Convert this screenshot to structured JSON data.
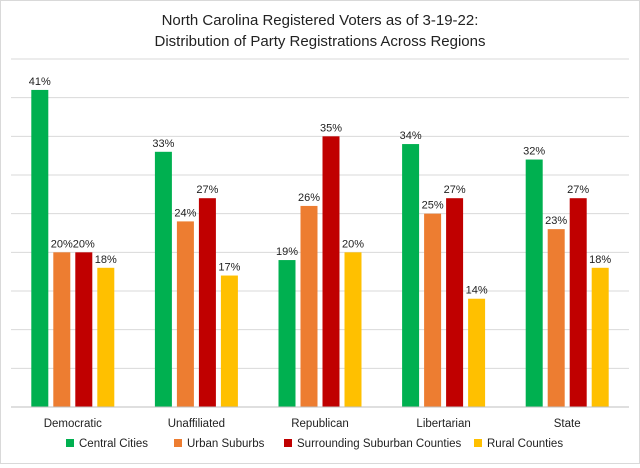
{
  "chart_data": {
    "type": "bar",
    "title_lines": [
      "North Carolina Registered Voters as of 3-19-22:",
      "Distribution of Party Registrations Across Regions"
    ],
    "categories": [
      "Democratic",
      "Unaffiliated",
      "Republican",
      "Libertarian",
      "State"
    ],
    "series": [
      {
        "name": "Central Cities",
        "color": "#00b050",
        "values": [
          41,
          33,
          19,
          34,
          32
        ]
      },
      {
        "name": "Urban Suburbs",
        "color": "#ed7d31",
        "values": [
          20,
          24,
          26,
          25,
          23
        ]
      },
      {
        "name": "Surrounding Suburban Counties",
        "color": "#c00000",
        "values": [
          20,
          27,
          35,
          27,
          27
        ]
      },
      {
        "name": "Rural Counties",
        "color": "#ffc000",
        "values": [
          18,
          17,
          20,
          14,
          18
        ]
      }
    ],
    "data_labels": [
      [
        "41%",
        "33%",
        "19%",
        "34%",
        "32%"
      ],
      [
        "20%",
        "24%",
        "26%",
        "25%",
        "23%"
      ],
      [
        "20%",
        "27%",
        "35%",
        "27%",
        "27%"
      ],
      [
        "18%",
        "17%",
        "20%",
        "14%",
        "18%"
      ]
    ],
    "ylim": [
      0,
      45
    ],
    "y_gridline_step": 5,
    "grid": true,
    "legend_position": "bottom",
    "xlabel": "",
    "ylabel": ""
  }
}
